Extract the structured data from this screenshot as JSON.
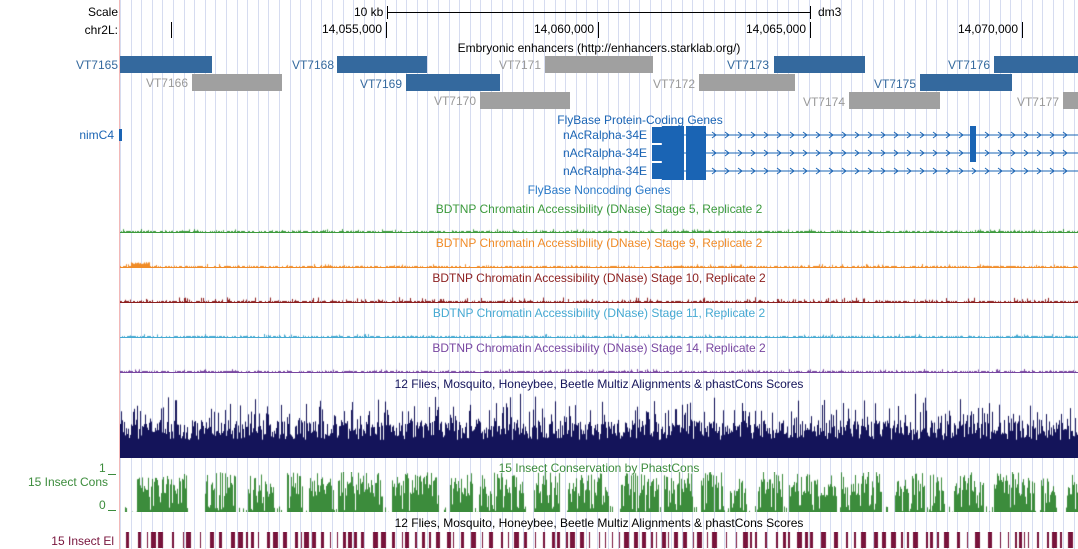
{
  "scale": {
    "label": "Scale",
    "ruler_text": "10 kb",
    "assembly": "dm3"
  },
  "chrom": {
    "label": "chr2L:",
    "positions": [
      "14,055,000",
      "14,060,000",
      "14,065,000",
      "14,070,000"
    ]
  },
  "enhancers": {
    "title": "Embryonic enhancers (http://enhancers.starklab.org/)",
    "blue_color": "#34699e",
    "gray_color": "#a0a0a0",
    "items": [
      {
        "name": "VT7165",
        "color": "blue"
      },
      {
        "name": "VT7166",
        "color": "gray"
      },
      {
        "name": "VT7168",
        "color": "blue"
      },
      {
        "name": "VT7169",
        "color": "blue"
      },
      {
        "name": "VT7170",
        "color": "gray"
      },
      {
        "name": "VT7171",
        "color": "gray"
      },
      {
        "name": "VT7172",
        "color": "gray"
      },
      {
        "name": "VT7173",
        "color": "blue"
      },
      {
        "name": "VT7174",
        "color": "gray"
      },
      {
        "name": "VT7175",
        "color": "blue"
      },
      {
        "name": "VT7176",
        "color": "blue"
      },
      {
        "name": "VT7177",
        "color": "gray"
      }
    ]
  },
  "genes": {
    "title": "FlyBase Protein-Coding Genes",
    "left_gene": "nimC4",
    "transcripts": [
      "nAcRalpha-34E",
      "nAcRalpha-34E",
      "nAcRalpha-34E"
    ],
    "color": "#1a64b4",
    "noncoding_title": "FlyBase Noncoding Genes"
  },
  "dnase": [
    {
      "title": "BDTNP Chromatin Accessibility (DNase) Stage 5, Replicate 2",
      "color": "#3c9a3c"
    },
    {
      "title": "BDTNP Chromatin Accessibility (DNase) Stage 9, Replicate 2",
      "color": "#f08c28"
    },
    {
      "title": "BDTNP Chromatin Accessibility (DNase) Stage 10, Replicate 2",
      "color": "#8c1e1e"
    },
    {
      "title": "BDTNP Chromatin Accessibility (DNase) Stage 11, Replicate 2",
      "color": "#46aad2"
    },
    {
      "title": "BDTNP Chromatin Accessibility (DNase) Stage 14, Replicate 2",
      "color": "#7846a0"
    }
  ],
  "multiz": {
    "title": "12 Flies, Mosquito, Honeybee, Beetle Multiz Alignments & phastCons Scores",
    "color": "#14145a"
  },
  "insect_cons": {
    "label": "15 Insect Cons",
    "title": "15 Insect Conservation by PhastCons",
    "ymax": "1",
    "ymin": "0",
    "color": "#3c8c3c"
  },
  "insect_el": {
    "label": "15 Insect El",
    "title": "12 Flies, Mosquito, Honeybee, Beetle Multiz Alignments & phastCons Scores",
    "color": "#78143c"
  }
}
